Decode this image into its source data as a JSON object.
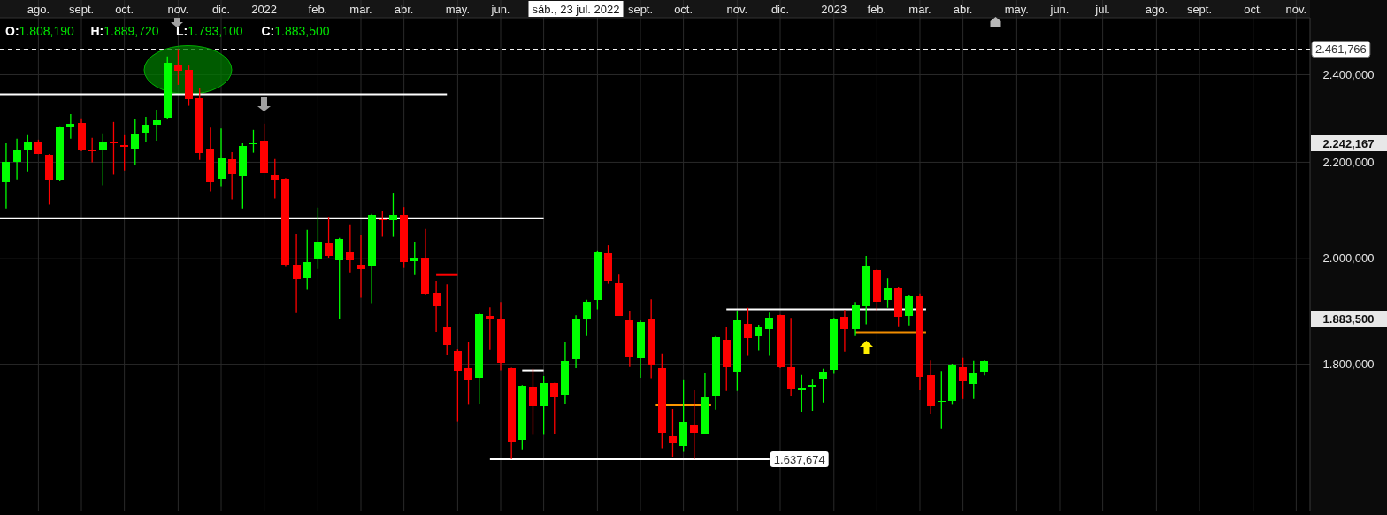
{
  "chart_data": {
    "type": "candlestick",
    "x": [
      "2021-07-17",
      "2021-07-24",
      "2021-07-31",
      "2021-08-07",
      "2021-08-14",
      "2021-08-21",
      "2021-08-28",
      "2021-09-04",
      "2021-09-11",
      "2021-09-18",
      "2021-09-25",
      "2021-10-02",
      "2021-10-09",
      "2021-10-16",
      "2021-10-23",
      "2021-10-30",
      "2021-11-06",
      "2021-11-13",
      "2021-11-20",
      "2021-11-27",
      "2021-12-04",
      "2021-12-11",
      "2021-12-18",
      "2021-12-25",
      "2022-01-01",
      "2022-01-08",
      "2022-01-15",
      "2022-01-22",
      "2022-01-29",
      "2022-02-05",
      "2022-02-12",
      "2022-02-19",
      "2022-02-26",
      "2022-03-05",
      "2022-03-12",
      "2022-03-19",
      "2022-03-26",
      "2022-04-02",
      "2022-04-09",
      "2022-04-16",
      "2022-04-23",
      "2022-04-30",
      "2022-05-07",
      "2022-05-14",
      "2022-05-21",
      "2022-05-28",
      "2022-06-04",
      "2022-06-11",
      "2022-06-18",
      "2022-06-25",
      "2022-07-02",
      "2022-07-09",
      "2022-07-16",
      "2022-07-23",
      "2022-07-30",
      "2022-08-06",
      "2022-08-13",
      "2022-08-20",
      "2022-08-27",
      "2022-09-03",
      "2022-09-10",
      "2022-09-17",
      "2022-09-24",
      "2022-10-01",
      "2022-10-08",
      "2022-10-15",
      "2022-10-22",
      "2022-10-29",
      "2022-11-05",
      "2022-11-12",
      "2022-11-19",
      "2022-11-26",
      "2022-12-03",
      "2022-12-10",
      "2022-12-17",
      "2022-12-24",
      "2022-12-31",
      "2023-01-07",
      "2023-01-14",
      "2023-01-21",
      "2023-01-28",
      "2023-02-04",
      "2023-02-11",
      "2023-02-18",
      "2023-02-25",
      "2023-03-04",
      "2023-03-11",
      "2023-03-18",
      "2023-03-25",
      "2023-04-01",
      "2023-04-08",
      "2023-04-15"
    ],
    "ohlc": [
      [
        2157,
        2242,
        2101,
        2201
      ],
      [
        2201,
        2252,
        2163,
        2226
      ],
      [
        2227,
        2262,
        2180,
        2244
      ],
      [
        2244,
        2250,
        2218,
        2219
      ],
      [
        2216,
        2218,
        2109,
        2163
      ],
      [
        2163,
        2280,
        2159,
        2278
      ],
      [
        2278,
        2308,
        2252,
        2286
      ],
      [
        2288,
        2298,
        2224,
        2229
      ],
      [
        2227,
        2254,
        2200,
        2225
      ],
      [
        2227,
        2264,
        2150,
        2246
      ],
      [
        2246,
        2290,
        2173,
        2241
      ],
      [
        2238,
        2262,
        2182,
        2233
      ],
      [
        2231,
        2296,
        2194,
        2264
      ],
      [
        2266,
        2302,
        2246,
        2284
      ],
      [
        2284,
        2318,
        2248,
        2294
      ],
      [
        2300,
        2444,
        2296,
        2429
      ],
      [
        2424,
        2462,
        2376,
        2410
      ],
      [
        2412,
        2422,
        2327,
        2343
      ],
      [
        2345,
        2368,
        2205,
        2221
      ],
      [
        2230,
        2277,
        2137,
        2156
      ],
      [
        2165,
        2275,
        2148,
        2209
      ],
      [
        2207,
        2222,
        2120,
        2173
      ],
      [
        2171,
        2242,
        2101,
        2236
      ],
      [
        2239,
        2272,
        2221,
        2242
      ],
      [
        2248,
        2286,
        2176,
        2176
      ],
      [
        2172,
        2207,
        2122,
        2163
      ],
      [
        2164,
        2166,
        1983,
        1986
      ],
      [
        1987,
        2048,
        1894,
        1960
      ],
      [
        1962,
        2057,
        1938,
        1993
      ],
      [
        1998,
        2103,
        1979,
        2032
      ],
      [
        2030,
        2084,
        2000,
        2005
      ],
      [
        1996,
        2041,
        1882,
        2039
      ],
      [
        2012,
        2068,
        1972,
        1997
      ],
      [
        1986,
        2046,
        1923,
        1979
      ],
      [
        1984,
        2090,
        1913,
        2088
      ],
      [
        2079,
        2097,
        2043,
        2077
      ],
      [
        2077,
        2134,
        2043,
        2088
      ],
      [
        2088,
        2104,
        1981,
        1993
      ],
      [
        1995,
        2033,
        1967,
        2001
      ],
      [
        2001,
        2059,
        1929,
        1931
      ],
      [
        1932,
        1956,
        1859,
        1907
      ],
      [
        1869,
        1949,
        1817,
        1834
      ],
      [
        1824,
        1828,
        1700,
        1789
      ],
      [
        1793,
        1840,
        1729,
        1772
      ],
      [
        1776,
        1894,
        1730,
        1892
      ],
      [
        1889,
        1905,
        1827,
        1882
      ],
      [
        1882,
        1915,
        1789,
        1802
      ],
      [
        1793,
        1794,
        1638,
        1667
      ],
      [
        1670,
        1763,
        1654,
        1762
      ],
      [
        1760,
        1792,
        1678,
        1726
      ],
      [
        1726,
        1779,
        1678,
        1767
      ],
      [
        1767,
        1767,
        1679,
        1742
      ],
      [
        1747,
        1841,
        1730,
        1806
      ],
      [
        1808.19,
        1889.72,
        1793.1,
        1883.5
      ],
      [
        1884,
        1919,
        1851,
        1915
      ],
      [
        1919,
        2014,
        1901,
        2012
      ],
      [
        2010,
        2026,
        1950,
        1955
      ],
      [
        1951,
        1968,
        1889,
        1889
      ],
      [
        1880,
        1897,
        1795,
        1813
      ],
      [
        1811,
        1880,
        1776,
        1877
      ],
      [
        1884,
        1920,
        1775,
        1800
      ],
      [
        1793,
        1819,
        1656,
        1681
      ],
      [
        1676,
        1722,
        1641,
        1664
      ],
      [
        1659,
        1773,
        1650,
        1700
      ],
      [
        1695,
        1754,
        1638,
        1682
      ],
      [
        1679,
        1784,
        1679,
        1742
      ],
      [
        1744,
        1851,
        1721,
        1849
      ],
      [
        1844,
        1867,
        1753,
        1795
      ],
      [
        1786,
        1897,
        1753,
        1880
      ],
      [
        1874,
        1904,
        1816,
        1848
      ],
      [
        1851,
        1872,
        1824,
        1867
      ],
      [
        1863,
        1895,
        1816,
        1885
      ],
      [
        1890,
        1891,
        1793,
        1794
      ],
      [
        1795,
        1885,
        1744,
        1756
      ],
      [
        1755,
        1781,
        1716,
        1757
      ],
      [
        1761,
        1774,
        1718,
        1764
      ],
      [
        1775,
        1792,
        1733,
        1787
      ],
      [
        1790,
        1885,
        1783,
        1884
      ],
      [
        1887,
        1900,
        1822,
        1864
      ],
      [
        1864,
        1915,
        1851,
        1909
      ],
      [
        1907,
        2005,
        1873,
        1984
      ],
      [
        1977,
        1979,
        1899,
        1916
      ],
      [
        1919,
        1961,
        1904,
        1943
      ],
      [
        1943,
        1944,
        1869,
        1887
      ],
      [
        1889,
        1929,
        1871,
        1927
      ],
      [
        1925,
        1931,
        1754,
        1778
      ],
      [
        1781,
        1807,
        1713,
        1727
      ],
      [
        1735,
        1788,
        1688,
        1736
      ],
      [
        1736,
        1801,
        1729,
        1799
      ],
      [
        1795,
        1811,
        1739,
        1770
      ],
      [
        1765,
        1806,
        1739,
        1784
      ],
      [
        1786,
        1807,
        1780,
        1806
      ]
    ],
    "colors": [
      "#00ff00",
      "#00ff00",
      "#00ff00",
      "#ff0000",
      "#ff0000",
      "#00ff00",
      "#00ff00",
      "#ff0000",
      "#ff0000",
      "#00ff00",
      "#ff0000",
      "#ff0000",
      "#00ff00",
      "#00ff00",
      "#00ff00",
      "#00ff00",
      "#ff0000",
      "#ff0000",
      "#ff0000",
      "#ff0000",
      "#00ff00",
      "#ff0000",
      "#00ff00",
      "#00ff00",
      "#ff0000",
      "#ff0000",
      "#ff0000",
      "#ff0000",
      "#00ff00",
      "#00ff00",
      "#ff0000",
      "#00ff00",
      "#ff0000",
      "#ff0000",
      "#00ff00",
      "#ff0000",
      "#00ff00",
      "#ff0000",
      "#00ff00",
      "#ff0000",
      "#ff0000",
      "#ff0000",
      "#ff0000",
      "#ff0000",
      "#00ff00",
      "#ff0000",
      "#ff0000",
      "#ff0000",
      "#00ff00",
      "#ff0000",
      "#00ff00",
      "#ff0000",
      "#00ff00",
      "#00ff00",
      "#00ff00",
      "#00ff00",
      "#ff0000",
      "#ff0000",
      "#ff0000",
      "#00ff00",
      "#ff0000",
      "#ff0000",
      "#ff0000",
      "#00ff00",
      "#ff0000",
      "#00ff00",
      "#00ff00",
      "#ff0000",
      "#00ff00",
      "#ff0000",
      "#00ff00",
      "#00ff00",
      "#ff0000",
      "#ff0000",
      "#00ff00",
      "#00ff00",
      "#00ff00",
      "#00ff00",
      "#ff0000",
      "#00ff00",
      "#00ff00",
      "#ff0000",
      "#00ff00",
      "#ff0000",
      "#00ff00",
      "#ff0000",
      "#ff0000",
      "#00ff00",
      "#00ff00",
      "#ff0000",
      "#00ff00",
      "#00ff00"
    ],
    "series": [
      {
        "type": "line",
        "x": [
          "2021-07-13",
          "2022-04-30"
        ],
        "values": [
          2354,
          2354
        ],
        "color": "#ffffff"
      },
      {
        "type": "line",
        "x": [
          "2021-07-13",
          "2022-07-02"
        ],
        "values": [
          2081,
          2081
        ],
        "color": "#ffffff"
      },
      {
        "type": "line",
        "x": [
          "2022-04-23",
          "2022-05-07"
        ],
        "values": [
          1967,
          1967
        ],
        "color": "#ff0000"
      },
      {
        "type": "line",
        "x": [
          "2022-06-18",
          "2022-07-02"
        ],
        "values": [
          1789,
          1789
        ],
        "color": "#ffffff"
      },
      {
        "type": "line",
        "x": [
          "2022-09-13",
          "2022-10-19"
        ],
        "values": [
          1728,
          1728
        ],
        "color": "#ff9900"
      },
      {
        "type": "line",
        "x": [
          "2022-10-29",
          "2023-03-08"
        ],
        "values": [
          1901,
          1901
        ],
        "color": "#ffffff"
      },
      {
        "type": "line",
        "x": [
          "2023-01-21",
          "2023-03-08"
        ],
        "values": [
          1858,
          1858
        ],
        "color": "#f08c00"
      },
      {
        "type": "line",
        "x": [
          "2022-05-28",
          "2022-11-26"
        ],
        "values": [
          1637.674,
          1637.674
        ],
        "color": "#ffffff"
      }
    ],
    "xlim": [
      "2021-07-13",
      "2023-11-13"
    ],
    "xticks": [
      {
        "value": "2021-08-07",
        "label": "ago."
      },
      {
        "value": "2021-09-04",
        "label": "sept."
      },
      {
        "value": "2021-10-02",
        "label": "oct."
      },
      {
        "value": "2021-11-06",
        "label": "nov."
      },
      {
        "value": "2021-12-04",
        "label": "dic."
      },
      {
        "value": "2022-01-01",
        "label": "2022"
      },
      {
        "value": "2022-02-05",
        "label": "feb."
      },
      {
        "value": "2022-03-05",
        "label": "mar."
      },
      {
        "value": "2022-04-02",
        "label": "abr."
      },
      {
        "value": "2022-05-07",
        "label": "may."
      },
      {
        "value": "2022-06-04",
        "label": "jun."
      },
      {
        "value": "2022-07-02",
        "label": null
      },
      {
        "value": "2022-08-06",
        "label": null
      },
      {
        "value": "2022-09-03",
        "label": "sept."
      },
      {
        "value": "2022-10-01",
        "label": "oct."
      },
      {
        "value": "2022-11-05",
        "label": "nov."
      },
      {
        "value": "2022-12-03",
        "label": "dic."
      },
      {
        "value": "2023-01-07",
        "label": "2023"
      },
      {
        "value": "2023-02-04",
        "label": "feb."
      },
      {
        "value": "2023-03-04",
        "label": "mar."
      },
      {
        "value": "2023-04-01",
        "label": "abr."
      },
      {
        "value": "2023-05-06",
        "label": "may."
      },
      {
        "value": "2023-06-03",
        "label": "jun."
      },
      {
        "value": "2023-07-01",
        "label": "jul."
      },
      {
        "value": "2023-08-05",
        "label": "ago."
      },
      {
        "value": "2023-09-02",
        "label": "sept."
      },
      {
        "value": "2023-10-07",
        "label": "oct."
      },
      {
        "value": "2023-11-04",
        "label": "nov."
      }
    ],
    "ylim": [
      1555,
      2540
    ],
    "yticks": [
      {
        "value": 1800,
        "label": "1.800,000"
      },
      {
        "value": 2000,
        "label": "2.000,000"
      },
      {
        "value": 2200,
        "label": "2.200,000"
      },
      {
        "value": 2400,
        "label": "2.400,000"
      }
    ],
    "log": "y",
    "grid": true,
    "ref_lines": [
      {
        "axis": "y",
        "value": 2461.766,
        "label": "2.461,766",
        "color": "#ffffff",
        "line_style": "dashed"
      }
    ],
    "annotations": [
      "O:1.808,190",
      "H:1.889,720",
      "L:1.793,100",
      "C:1.883,500",
      "sáb., 23 jul. 2022",
      "2.242,167",
      "1.883,500",
      {
        "text": "1.637,674",
        "x": "2022-11-26",
        "y": 1637.674
      }
    ]
  }
}
